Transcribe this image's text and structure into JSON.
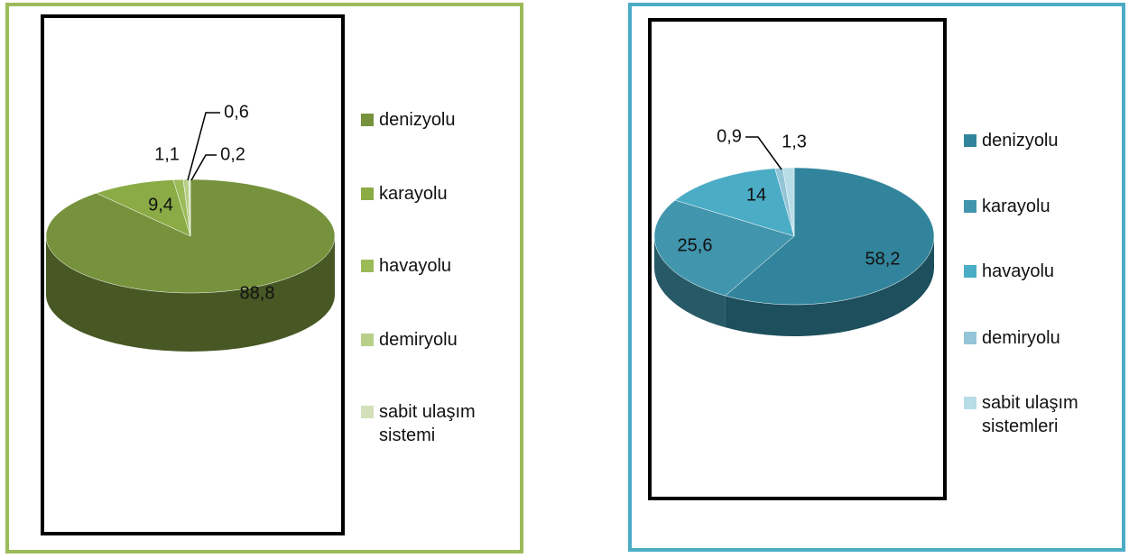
{
  "chart_data": [
    {
      "type": "pie3d",
      "categories": [
        "denizyolu",
        "karayolu",
        "havayolu",
        "demiryolu",
        "sabit ulaşım sistemi"
      ],
      "values": [
        88.8,
        9.4,
        1.1,
        0.6,
        0.2
      ],
      "value_labels": [
        "88,8",
        "9,4",
        "1,1",
        "0,6",
        "0,2"
      ],
      "colors": [
        "#76923c",
        "#8aab45",
        "#9bbb59",
        "#b8cf8a",
        "#d3e0b9"
      ]
    },
    {
      "type": "pie3d",
      "categories": [
        "denizyolu",
        "karayolu",
        "havayolu",
        "demiryolu",
        "sabit ulaşım sistemleri"
      ],
      "values": [
        58.2,
        25.6,
        14,
        0.9,
        1.3
      ],
      "value_labels": [
        "58,2",
        "25,6",
        "14",
        "0,9",
        "1,3"
      ],
      "colors": [
        "#31849b",
        "#4195ac",
        "#4bacc6",
        "#93c5d6",
        "#b6dde8"
      ]
    }
  ]
}
